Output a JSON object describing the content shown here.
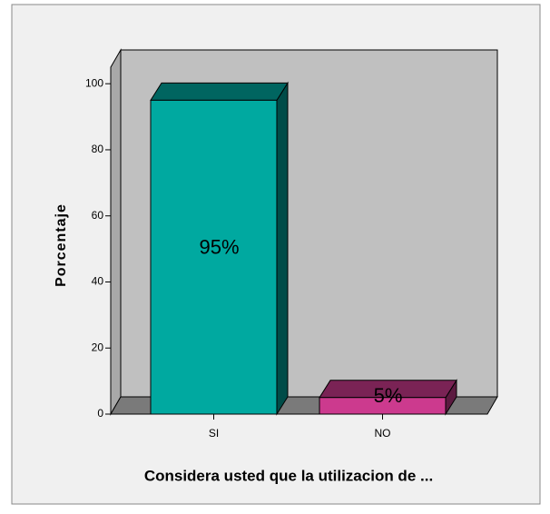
{
  "chart_data": {
    "type": "bar3d",
    "x_label": "Considera usted que la utilizacion de ...",
    "y_label": "Porcentaje",
    "categories": [
      "SI",
      "NO"
    ],
    "values": [
      95,
      5
    ],
    "value_labels": [
      "95%",
      "5%"
    ],
    "colors": [
      "#00a9a0",
      "#cc3a8e"
    ],
    "ylim": [
      0,
      105
    ],
    "yticks": [
      0,
      20,
      40,
      60,
      80,
      100
    ]
  }
}
